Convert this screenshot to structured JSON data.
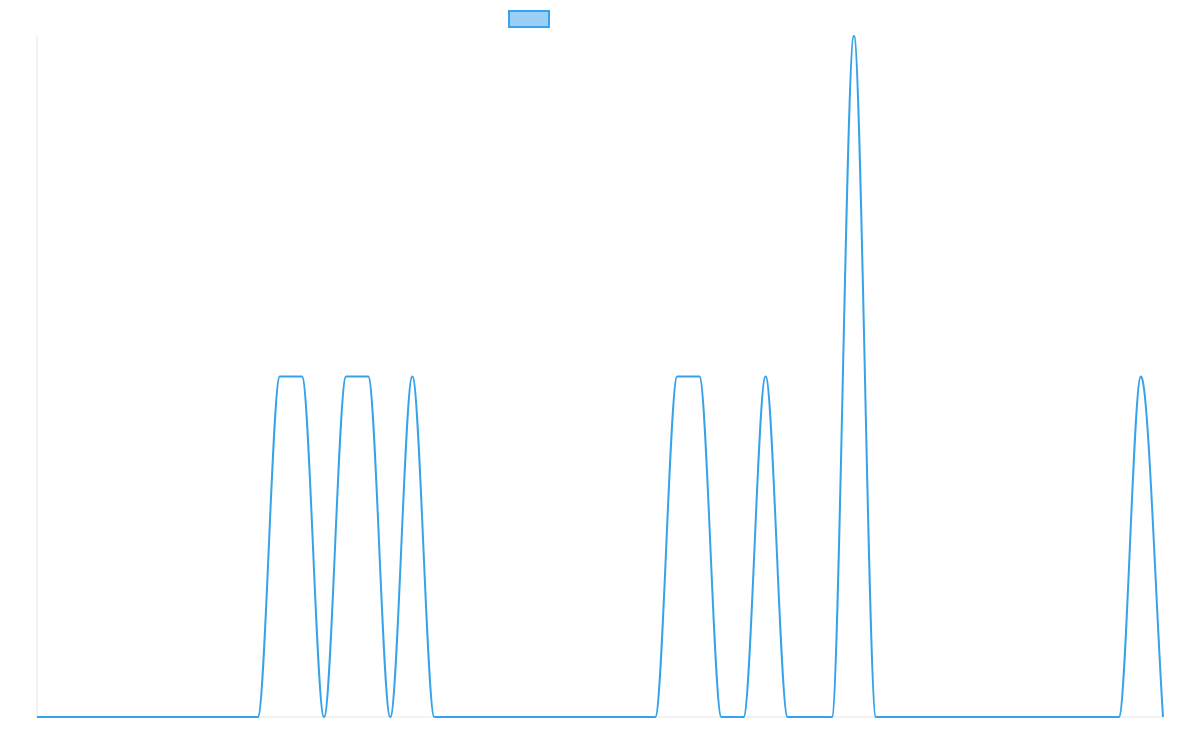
{
  "chart_data": {
    "type": "line",
    "title": "",
    "xlabel": "",
    "ylabel": "",
    "x": [
      0,
      1,
      2,
      3,
      4,
      5,
      6,
      7,
      8,
      9,
      10,
      11,
      12,
      13,
      14,
      15,
      16,
      17,
      18,
      19,
      20,
      21,
      22,
      23,
      24,
      25,
      26,
      27,
      28,
      29,
      30,
      31,
      32,
      33,
      34,
      35,
      36,
      37,
      38,
      39,
      40,
      41,
      42,
      43,
      44,
      45,
      46,
      47,
      48,
      49,
      50,
      51
    ],
    "ylim": [
      0,
      2
    ],
    "grid": false,
    "legend_position": "top",
    "series": [
      {
        "name": "",
        "color": "#36a2eb",
        "values": [
          0,
          0,
          0,
          0,
          0,
          0,
          0,
          0,
          0,
          0,
          0,
          1,
          1,
          0,
          1,
          1,
          0,
          1,
          0,
          0,
          0,
          0,
          0,
          0,
          0,
          0,
          0,
          0,
          0,
          1,
          1,
          0,
          0,
          1,
          0,
          0,
          0,
          2,
          0,
          0,
          0,
          0,
          0,
          0,
          0,
          0,
          0,
          0,
          0,
          0,
          1,
          0
        ]
      }
    ]
  },
  "legend": {
    "label": "",
    "swatch_color": "#36a2eb"
  }
}
